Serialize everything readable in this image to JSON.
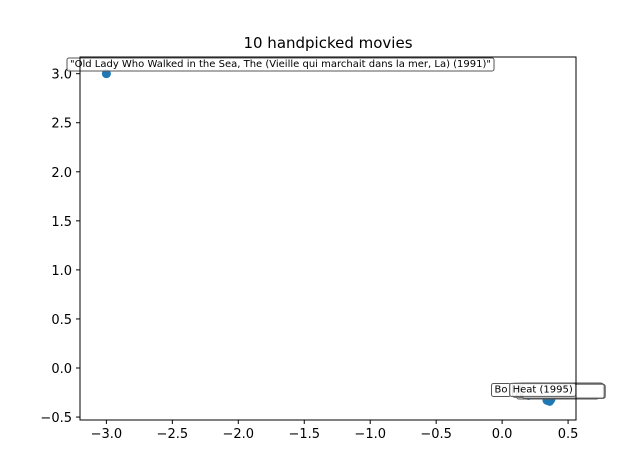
{
  "chart_data": {
    "type": "scatter",
    "title": "10 handpicked movies",
    "xlabel": "",
    "ylabel": "",
    "xlim": [
      -3.2,
      0.56
    ],
    "ylim": [
      -0.53,
      3.17
    ],
    "xticks": [
      -3.0,
      -2.5,
      -2.0,
      -1.5,
      -1.0,
      -0.5,
      0.0,
      0.5
    ],
    "xtick_labels": [
      "−3.0",
      "−2.5",
      "−2.0",
      "−1.5",
      "−1.0",
      "−0.5",
      "0.0",
      "0.5"
    ],
    "yticks": [
      3.0,
      2.5,
      2.0,
      1.5,
      1.0,
      0.5,
      0.0,
      -0.5
    ],
    "ytick_labels": [
      "3.0",
      "2.5",
      "2.0",
      "1.5",
      "1.0",
      "0.5",
      "0.0",
      "−0.5"
    ],
    "grid": false,
    "marker_color": "#1f77b4",
    "points": [
      {
        "x": -3.0,
        "y": 3.0,
        "label": "\"Old Lady Who Walked in the Sea, The (Vieille qui marchait dans la mer, La) (1991)\""
      },
      {
        "x": 0.2,
        "y": -0.28,
        "label": "Bo"
      },
      {
        "x": 0.34,
        "y": -0.32,
        "label": ""
      },
      {
        "x": 0.36,
        "y": -0.33,
        "label": ""
      },
      {
        "x": 0.35,
        "y": -0.33,
        "label": ""
      },
      {
        "x": 0.37,
        "y": -0.32,
        "label": ""
      },
      {
        "x": 0.35,
        "y": -0.31,
        "label": ""
      },
      {
        "x": 0.36,
        "y": -0.34,
        "label": ""
      },
      {
        "x": 0.34,
        "y": -0.33,
        "label": ""
      },
      {
        "x": 0.36,
        "y": -0.31,
        "label": "Heat (1995)"
      }
    ]
  }
}
